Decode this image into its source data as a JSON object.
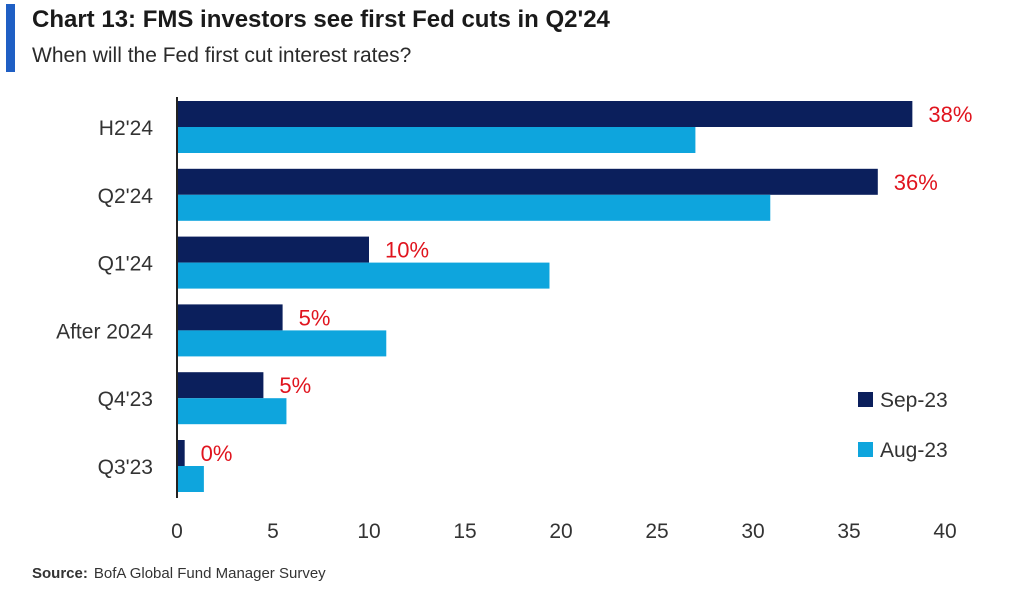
{
  "header": {
    "title": "Chart 13: FMS investors see first Fed cuts in Q2'24",
    "subtitle": "When will the Fed first cut interest rates?"
  },
  "footer": {
    "source_label": "Source:",
    "source_text": "BofA Global Fund Manager Survey"
  },
  "colors": {
    "accent": "#1f5fc4",
    "sep": "#0b1f5c",
    "aug": "#0ea5dd",
    "label": "#e0141e"
  },
  "chart_data": {
    "type": "bar",
    "orientation": "horizontal",
    "categories": [
      "H2'24",
      "Q2'24",
      "Q1'24",
      "After 2024",
      "Q4'23",
      "Q3'23"
    ],
    "series": [
      {
        "name": "Sep-23",
        "values": [
          38.3,
          36.5,
          10,
          5.5,
          4.5,
          0.4
        ],
        "labels": [
          "38%",
          "36%",
          "10%",
          "5%",
          "5%",
          "0%"
        ]
      },
      {
        "name": "Aug-23",
        "values": [
          27,
          30.9,
          19.4,
          10.9,
          5.7,
          1.4
        ]
      }
    ],
    "xlim": [
      0,
      40
    ],
    "xticks": [
      0,
      5,
      10,
      15,
      20,
      25,
      30,
      35,
      40
    ],
    "legend_position": "bottom-right",
    "grid": false
  }
}
